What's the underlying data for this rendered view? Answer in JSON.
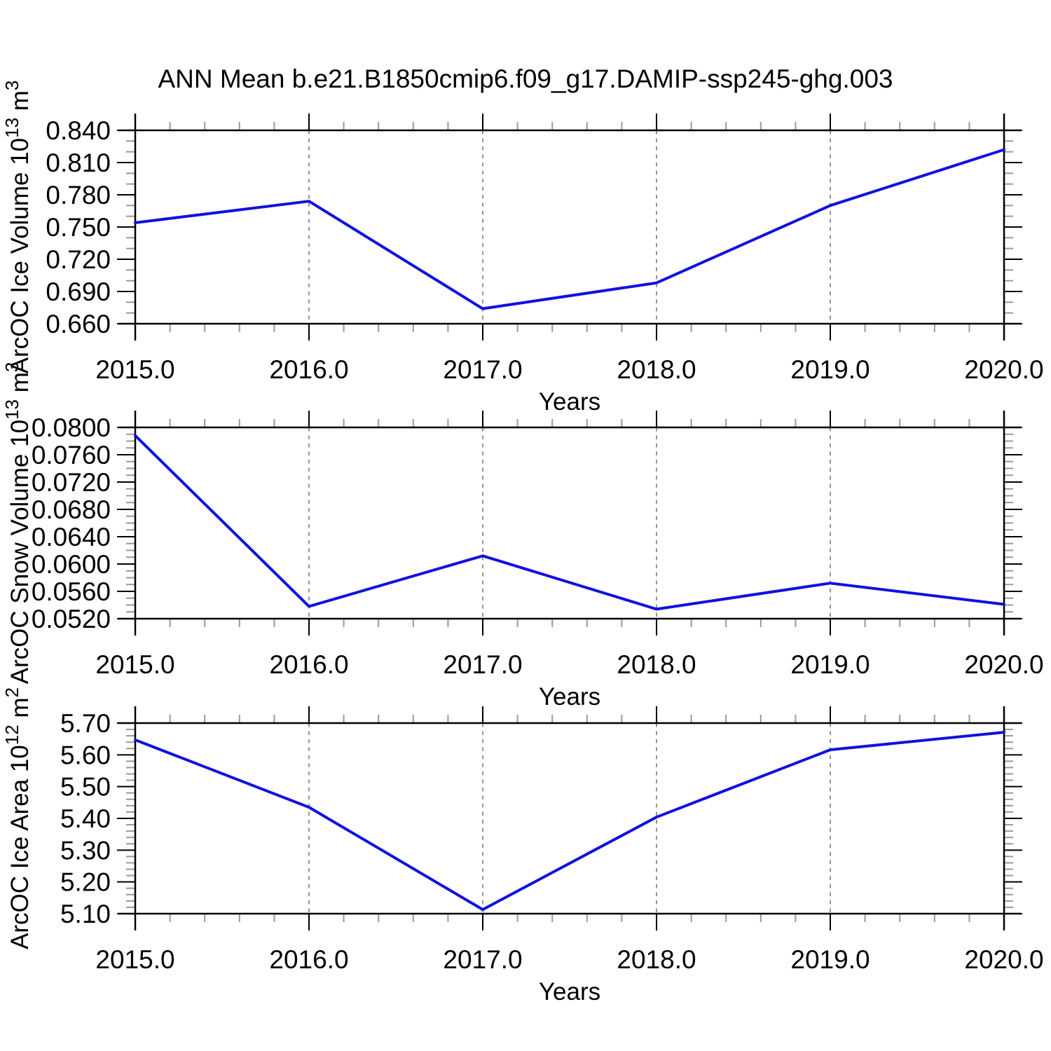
{
  "title": "ANN Mean b.e21.B1850cmip6.f09_g17.DAMIP-ssp245-ghg.003",
  "xlabel": "Years",
  "colors": {
    "line": "#1010e0",
    "grid": "#888888",
    "axis": "#000000",
    "minor_tick": "#999999"
  },
  "x_axis": {
    "range": [
      2015,
      2020
    ],
    "ticks": [
      2015,
      2016,
      2017,
      2018,
      2019,
      2020
    ],
    "tick_labels": [
      "2015.0",
      "2016.0",
      "2017.0",
      "2018.0",
      "2019.0",
      "2020.0"
    ],
    "minor_step": 0.2,
    "grid_years": [
      2016,
      2017,
      2018,
      2019
    ]
  },
  "chart_data": [
    {
      "type": "line",
      "name": "ice-volume",
      "ylabel_text": "ArcOC Ice Volume 10^13 m^3",
      "ylabel_parts": [
        {
          "t": "ArcOC Ice Volume 10"
        },
        {
          "t": "13",
          "sup": true
        },
        {
          "t": " m"
        },
        {
          "t": "3",
          "sup": true
        }
      ],
      "x": [
        2015,
        2016,
        2017,
        2018,
        2019,
        2020
      ],
      "values": [
        0.754,
        0.774,
        0.674,
        0.698,
        0.77,
        0.822
      ],
      "ylim": [
        0.66,
        0.84
      ],
      "yticks": [
        0.84,
        0.81,
        0.78,
        0.75,
        0.72,
        0.69,
        0.66
      ],
      "ytick_labels": [
        "0.840",
        "0.810",
        "0.780",
        "0.750",
        "0.720",
        "0.690",
        "0.660"
      ],
      "y_minor_step": 0.01,
      "xlabel": "Years",
      "grid": "vertical-dashed",
      "legend": "none"
    },
    {
      "type": "line",
      "name": "snow-volume",
      "ylabel_text": "ArcOC Snow Volume 10^13 m^3",
      "ylabel_parts": [
        {
          "t": "ArcOC Snow Volume 10"
        },
        {
          "t": "13",
          "sup": true
        },
        {
          "t": " m"
        },
        {
          "t": "3",
          "sup": true
        }
      ],
      "x": [
        2015,
        2016,
        2017,
        2018,
        2019,
        2020
      ],
      "values": [
        0.0788,
        0.0538,
        0.0612,
        0.0534,
        0.0572,
        0.0541
      ],
      "ylim": [
        0.052,
        0.08
      ],
      "yticks": [
        0.08,
        0.076,
        0.072,
        0.068,
        0.064,
        0.06,
        0.056,
        0.052
      ],
      "ytick_labels": [
        "0.0800",
        "0.0760",
        "0.0720",
        "0.0680",
        "0.0640",
        "0.0600",
        "0.0560",
        "0.0520"
      ],
      "y_minor_step": 0.001,
      "xlabel": "Years",
      "grid": "vertical-dashed",
      "legend": "none"
    },
    {
      "type": "line",
      "name": "ice-area",
      "ylabel_text": "ArcOC Ice Area 10^12 m^2",
      "ylabel_parts": [
        {
          "t": "ArcOC Ice Area 10"
        },
        {
          "t": "12",
          "sup": true
        },
        {
          "t": " m"
        },
        {
          "t": "2",
          "sup": true
        }
      ],
      "x": [
        2015,
        2016,
        2017,
        2018,
        2019,
        2020
      ],
      "values": [
        5.647,
        5.435,
        5.113,
        5.404,
        5.616,
        5.671
      ],
      "ylim": [
        5.1,
        5.7
      ],
      "yticks": [
        5.7,
        5.6,
        5.5,
        5.4,
        5.3,
        5.2,
        5.1
      ],
      "ytick_labels": [
        "5.70",
        "5.60",
        "5.50",
        "5.40",
        "5.30",
        "5.20",
        "5.10"
      ],
      "y_minor_step": 0.02,
      "xlabel": "Years",
      "grid": "vertical-dashed",
      "legend": "none"
    }
  ]
}
